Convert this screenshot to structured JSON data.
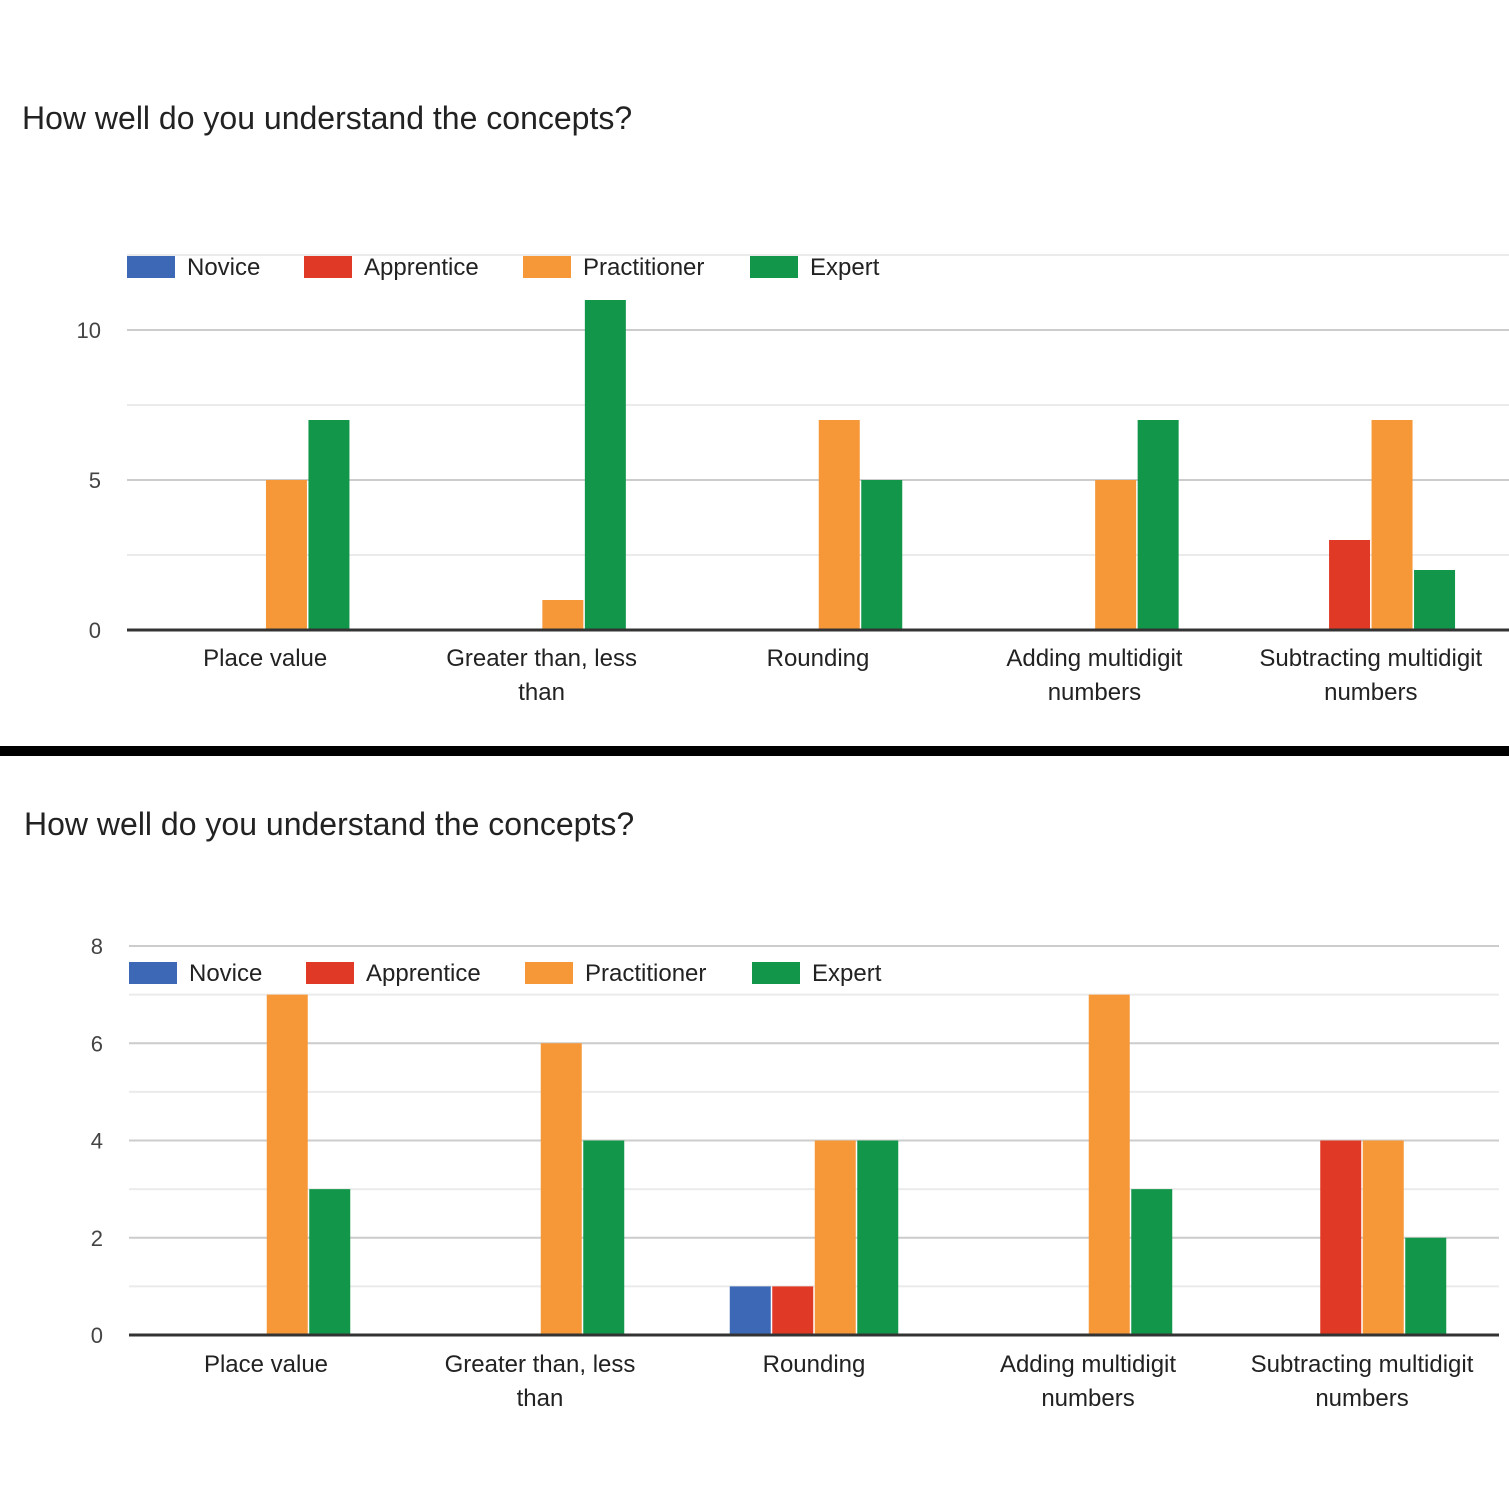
{
  "chart_data": [
    {
      "type": "bar",
      "title": "How well do you understand the concepts?",
      "categories": [
        [
          "Place value"
        ],
        [
          "Greater than, less",
          "than"
        ],
        [
          "Rounding"
        ],
        [
          "Adding multidigit",
          "numbers"
        ],
        [
          "Subtracting multidigit",
          "numbers"
        ]
      ],
      "series": [
        {
          "name": "Novice",
          "color": "#3c68b6",
          "values": [
            0,
            0,
            0,
            0,
            0
          ]
        },
        {
          "name": "Apprentice",
          "color": "#e03a26",
          "values": [
            0,
            0,
            0,
            0,
            3
          ]
        },
        {
          "name": "Practitioner",
          "color": "#f69738",
          "values": [
            5,
            1,
            7,
            5,
            7
          ]
        },
        {
          "name": "Expert",
          "color": "#12974a",
          "values": [
            7,
            11,
            5,
            7,
            2
          ]
        }
      ],
      "yticks": [
        0,
        5,
        10
      ],
      "ylim": [
        0,
        12.5
      ],
      "minor_gridlines": [
        2.5,
        7.5,
        12.5
      ],
      "grid": true,
      "legend": "top-left"
    },
    {
      "type": "bar",
      "title": "How well do you understand the concepts?",
      "categories": [
        [
          "Place value"
        ],
        [
          "Greater than, less",
          "than"
        ],
        [
          "Rounding"
        ],
        [
          "Adding multidigit",
          "numbers"
        ],
        [
          "Subtracting multidigit",
          "numbers"
        ]
      ],
      "series": [
        {
          "name": "Novice",
          "color": "#3c68b6",
          "values": [
            0,
            0,
            1,
            0,
            0
          ]
        },
        {
          "name": "Apprentice",
          "color": "#e03a26",
          "values": [
            0,
            0,
            1,
            0,
            4
          ]
        },
        {
          "name": "Practitioner",
          "color": "#f69738",
          "values": [
            7,
            6,
            4,
            7,
            4
          ]
        },
        {
          "name": "Expert",
          "color": "#12974a",
          "values": [
            3,
            4,
            4,
            3,
            2
          ]
        }
      ],
      "yticks": [
        0,
        2,
        4,
        6,
        8
      ],
      "ylim": [
        0,
        8
      ],
      "minor_gridlines": [
        1,
        3,
        5,
        7
      ],
      "grid": true,
      "legend": "top-left"
    }
  ]
}
